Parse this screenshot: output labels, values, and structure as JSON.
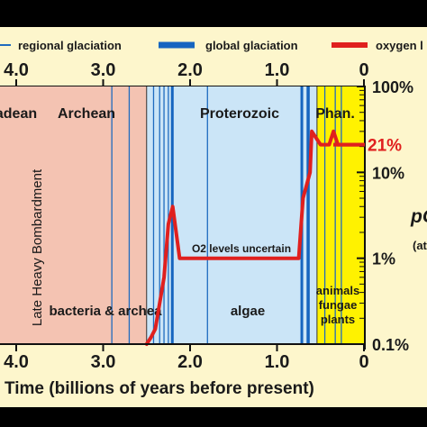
{
  "chart_data": {
    "type": "line",
    "title": "",
    "xlabel": "Time (billions of years before present)",
    "ylabel": "",
    "x_reversed": true,
    "xlim": [
      0,
      4.5
    ],
    "x_ticks": [
      {
        "value": 4.0,
        "label": "4.0"
      },
      {
        "value": 3.0,
        "label": "3.0"
      },
      {
        "value": 2.0,
        "label": "2.0"
      },
      {
        "value": 1.0,
        "label": "1.0"
      },
      {
        "value": 0,
        "label": "0"
      }
    ],
    "y_scale": "log",
    "ylim_percent": [
      0.1,
      100
    ],
    "y_ticks": [
      {
        "value": 100,
        "label": "100%"
      },
      {
        "value": 10,
        "label": "10%"
      },
      {
        "value": 1,
        "label": "1%"
      },
      {
        "value": 0.1,
        "label": "0.1%"
      }
    ],
    "right_label_partial": "pO",
    "right_label_partial2": "(at",
    "highlight_label": {
      "text": "21%",
      "value": 21,
      "color": "#e0201e"
    },
    "legend": [
      {
        "label": "regional glaciation",
        "style": "thin-line",
        "color": "#1f6bbf"
      },
      {
        "label": "global glaciation",
        "style": "thick-line",
        "color": "#1565c0"
      },
      {
        "label": "oxygen l",
        "style": "thick-line",
        "color": "#e0201e"
      }
    ],
    "eons": [
      {
        "name": "adean",
        "start": 4.5,
        "end": 4.0,
        "color": "#f4c3b2"
      },
      {
        "name": "Archean",
        "start": 4.0,
        "end": 2.5,
        "color": "#f4c3b2"
      },
      {
        "name": "Proterozoic",
        "start": 2.5,
        "end": 0.54,
        "color": "#cbe5f7"
      },
      {
        "name": "Phan.",
        "start": 0.54,
        "end": 0.0,
        "color": "#fff200"
      }
    ],
    "region_labels": [
      {
        "text": "Late Heavy Bombardment",
        "orientation": "vertical"
      },
      {
        "text": "bacteria & archea"
      },
      {
        "text": "algae"
      },
      {
        "text": "animals"
      },
      {
        "text": "fungae"
      },
      {
        "text": "plants"
      },
      {
        "text": "O2 levels uncertain"
      }
    ],
    "regional_glaciations": [
      2.9,
      2.7,
      2.42,
      2.35,
      2.3,
      2.25,
      1.8,
      0.72,
      0.63,
      0.45,
      0.33,
      0.26
    ],
    "global_glaciations": [
      {
        "start": 2.22,
        "end": 2.2
      },
      {
        "start": 0.73,
        "end": 0.7
      },
      {
        "start": 0.66,
        "end": 0.63
      }
    ],
    "series": [
      {
        "name": "oxygen l",
        "color": "#e0201e",
        "x": [
          2.5,
          2.45,
          2.4,
          2.3,
          2.25,
          2.2,
          2.12,
          2.08,
          1.5,
          1.0,
          0.75,
          0.7,
          0.62,
          0.6,
          0.5,
          0.4,
          0.35,
          0.3,
          0.2,
          0.0
        ],
        "y": [
          0.1,
          0.12,
          0.15,
          0.6,
          2.5,
          4.0,
          1.0,
          1.0,
          1.0,
          1.0,
          1.0,
          5.0,
          10.0,
          30.0,
          21.0,
          21.0,
          30.0,
          21.0,
          21.0,
          21.0
        ]
      }
    ]
  }
}
